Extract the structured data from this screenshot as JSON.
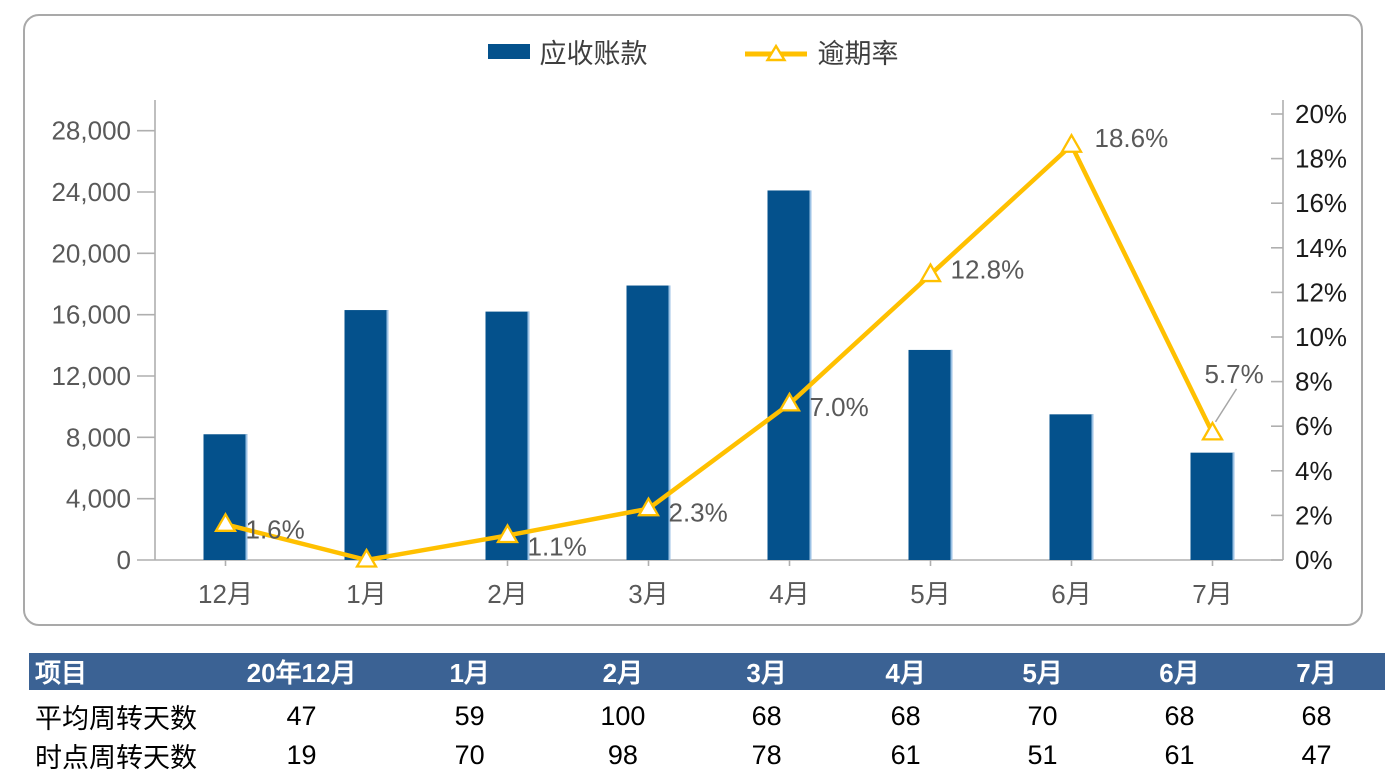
{
  "chart_data": {
    "type": "combo",
    "categories": [
      "12月",
      "1月",
      "2月",
      "3月",
      "4月",
      "5月",
      "6月",
      "7月"
    ],
    "series": [
      {
        "name": "应收账款",
        "type": "bar",
        "axis": "left",
        "values": [
          8200,
          16300,
          16200,
          17900,
          24100,
          13700,
          9500,
          7000
        ]
      },
      {
        "name": "逾期率",
        "type": "line",
        "axis": "right",
        "values": [
          1.6,
          0.0,
          1.1,
          2.3,
          7.0,
          12.8,
          18.6,
          5.7
        ],
        "point_labels": [
          "1.6%",
          "",
          "1.1%",
          "2.3%",
          "7.0%",
          "12.8%",
          "18.6%",
          "5.7%"
        ]
      }
    ],
    "left_axis": {
      "min": 0,
      "max": 30000,
      "major_unit": 4000,
      "tick_labels": [
        "0",
        "4,000",
        "8,000",
        "12,000",
        "16,000",
        "20,000",
        "24,000",
        "28,000"
      ]
    },
    "right_axis": {
      "min": 0,
      "max": 20,
      "major_unit": 2,
      "tick_labels": [
        "0%",
        "2%",
        "4%",
        "6%",
        "8%",
        "10%",
        "12%",
        "14%",
        "16%",
        "18%",
        "20%"
      ]
    },
    "gridlines": false,
    "legend_position": "top"
  },
  "colors": {
    "bar_fill": "#04518C",
    "bar_edge": "#9CC2E5",
    "line": "#FFC000",
    "marker_fill": "#FFFFFF",
    "axis_line": "#AFAFAF",
    "left_tick_label": "#595959",
    "right_tick_label": "#1A1A1A",
    "x_tick_label": "#595959",
    "data_label": "#595959",
    "legend_text": "#3F3F3F",
    "card_border": "#A9A9A9",
    "table_header_bg": "#3B6294",
    "table_header_text": "#FFFFFF",
    "table_text": "#000000",
    "table_bottom_rule": "#44546A",
    "leader_line": "#A6A6A6"
  },
  "table": {
    "headers": [
      "项目",
      "20年12月",
      "1月",
      "2月",
      "3月",
      "4月",
      "5月",
      "6月",
      "7月"
    ],
    "rows": [
      {
        "label": "平均周转天数",
        "values": [
          "47",
          "59",
          "100",
          "68",
          "68",
          "70",
          "68",
          "68"
        ]
      },
      {
        "label": "时点周转天数",
        "values": [
          "19",
          "70",
          "98",
          "78",
          "61",
          "51",
          "61",
          "47"
        ]
      }
    ]
  }
}
